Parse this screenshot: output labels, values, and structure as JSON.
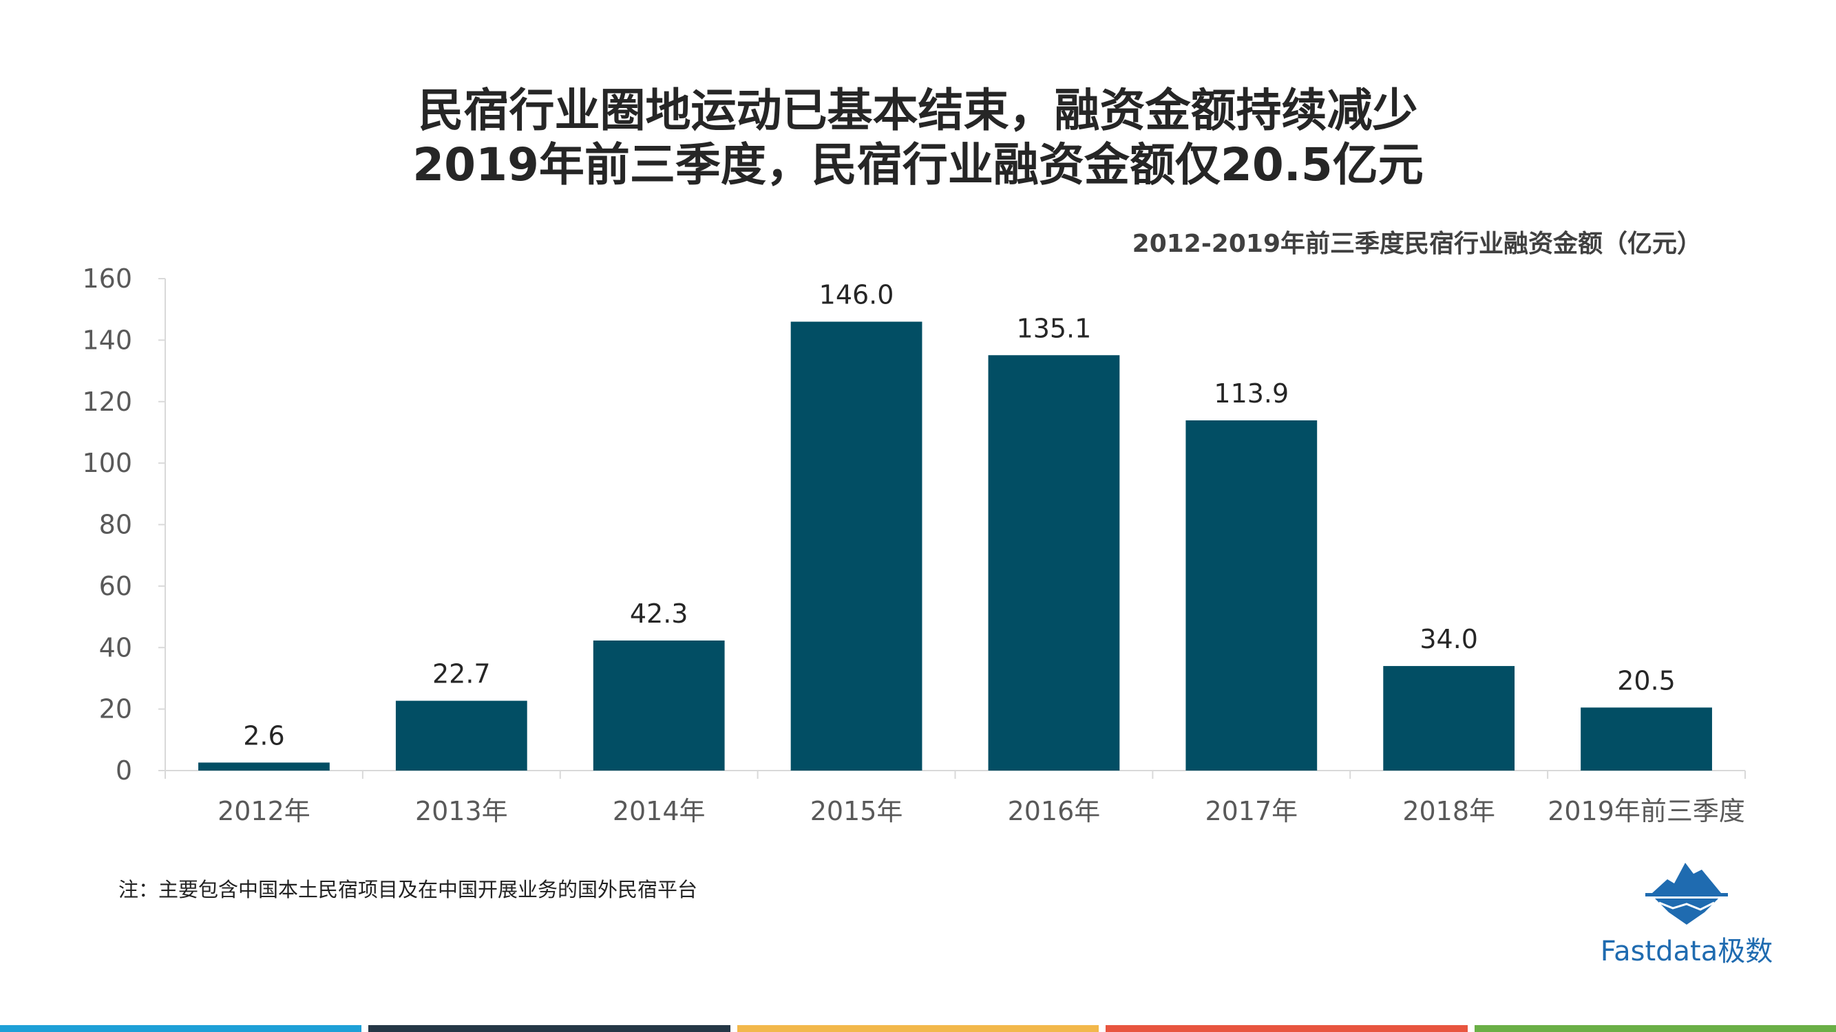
{
  "titles": {
    "line1": "民宿行业圈地运动已基本结束，融资金额持续减少",
    "line2": "2019年前三季度，民宿行业融资金额仅20.5亿元"
  },
  "chart_data": {
    "type": "bar",
    "title": "2012-2019年前三季度民宿行业融资金额（亿元）",
    "categories": [
      "2012年",
      "2013年",
      "2014年",
      "2015年",
      "2016年",
      "2017年",
      "2018年",
      "2019年前三季度"
    ],
    "values": [
      2.6,
      22.7,
      42.3,
      146.0,
      135.1,
      113.9,
      34.0,
      20.5
    ],
    "value_labels": [
      "2.6",
      "22.7",
      "42.3",
      "146.0",
      "135.1",
      "113.9",
      "34.0",
      "20.5"
    ],
    "yticks": [
      "0",
      "20",
      "40",
      "60",
      "80",
      "100",
      "120",
      "140",
      "160"
    ],
    "ylim": [
      0,
      160
    ],
    "xlabel": "",
    "ylabel": "",
    "bar_color": "#024e64",
    "axis_color": "#d9d9d9",
    "grid": false
  },
  "note": "注：主要包含中国本土民宿项目及在中国开展业务的国外民宿平台",
  "logo": {
    "text": "Fastdata极数",
    "icon": "iceberg-icon",
    "color": "#1f6bb0"
  },
  "bottom_stripes": [
    "#1ea0d7",
    "#253746",
    "#f2b84b",
    "#e8553f",
    "#6aaf46"
  ]
}
